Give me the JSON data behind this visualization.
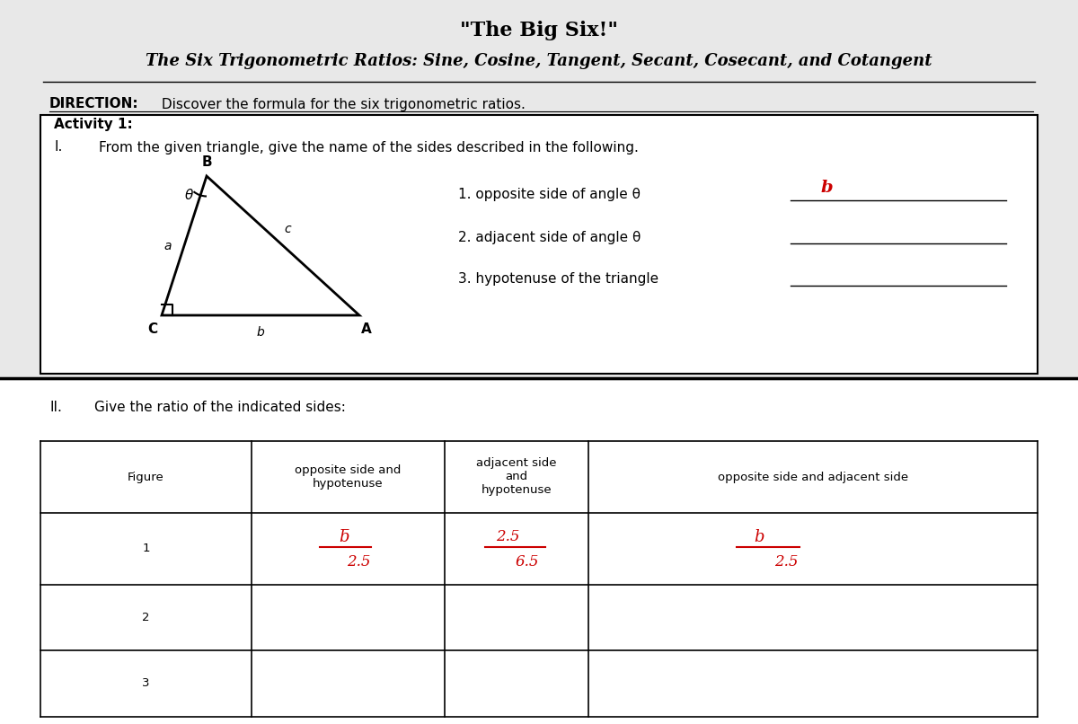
{
  "title": "\"The Big Six!\"",
  "subtitle": "The Six Trigonometric Ratios: Sine, Cosine, Tangent, Secant, Cosecant, and Cotangent",
  "direction_label": "DIRECTION:",
  "direction_text": " Discover the formula for the six trigonometric ratios.",
  "activity_label": "Activity 1:",
  "roman_one": "I.",
  "activity_desc": "From the given triangle, give the name of the sides described in the following.",
  "q1": "1. opposite side of angle θ",
  "q2": "2. adjacent side of angle θ",
  "q3": "3. hypotenuse of the triangle",
  "ans1": "b",
  "roman_two": "II.",
  "part2_title": "Give the ratio of the indicated sides:",
  "col_headers": [
    "Figure",
    "opposite side and\nhypotenuse",
    "adjacent side\nand\nhypotenuse",
    "opposite side and adjacent side"
  ],
  "rows": [
    "1",
    "2",
    "3"
  ],
  "cell_r1c1": "b̅/2.5",
  "cell_r1c2": "2.5/6.5",
  "cell_r1c3": "b/2.5",
  "bg_color": "#e8e8e8",
  "box_color": "#ffffff",
  "line_color": "#000000",
  "red_color": "#cc0000",
  "title_fontsize": 16,
  "subtitle_fontsize": 13,
  "body_fontsize": 11,
  "small_fontsize": 10
}
